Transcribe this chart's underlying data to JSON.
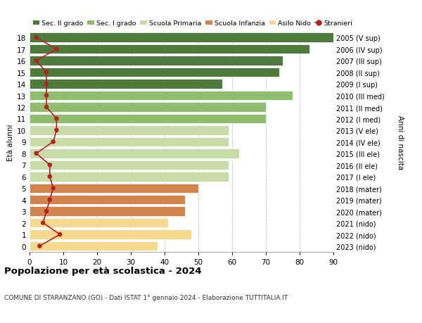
{
  "ages": [
    0,
    1,
    2,
    3,
    4,
    5,
    6,
    7,
    8,
    9,
    10,
    11,
    12,
    13,
    14,
    15,
    16,
    17,
    18
  ],
  "right_labels": [
    "2023 (nido)",
    "2022 (nido)",
    "2021 (nido)",
    "2020 (mater)",
    "2019 (mater)",
    "2018 (mater)",
    "2017 (I ele)",
    "2016 (II ele)",
    "2015 (III ele)",
    "2014 (IV ele)",
    "2013 (V ele)",
    "2012 (I med)",
    "2011 (II med)",
    "2010 (III med)",
    "2009 (I sup)",
    "2008 (II sup)",
    "2007 (III sup)",
    "2006 (IV sup)",
    "2005 (V sup)"
  ],
  "bar_values": [
    38,
    48,
    41,
    46,
    46,
    50,
    59,
    59,
    62,
    59,
    59,
    70,
    70,
    78,
    57,
    74,
    75,
    83,
    90
  ],
  "bar_colors": [
    "#f5d98e",
    "#f5d98e",
    "#f5d98e",
    "#d2844e",
    "#d2844e",
    "#d2844e",
    "#c8dba8",
    "#c8dba8",
    "#c8dba8",
    "#c8dba8",
    "#c8dba8",
    "#8fbc6e",
    "#8fbc6e",
    "#8fbc6e",
    "#4e7a3e",
    "#4e7a3e",
    "#4e7a3e",
    "#4e7a3e",
    "#4e7a3e"
  ],
  "stranieri_values": [
    3,
    9,
    4,
    5,
    6,
    7,
    6,
    6,
    2,
    7,
    8,
    8,
    5,
    5,
    5,
    5,
    2,
    8,
    2
  ],
  "legend_labels": [
    "Sec. II grado",
    "Sec. I grado",
    "Scuola Primaria",
    "Scuola Infanzia",
    "Asilo Nido",
    "Stranieri"
  ],
  "legend_colors": [
    "#4e7a3e",
    "#8fbc6e",
    "#c8dba8",
    "#d2844e",
    "#f5d98e",
    "#b22222"
  ],
  "title": "Popolazione per età scolastica - 2024",
  "subtitle": "COMUNE DI STARANZANO (GO) - Dati ISTAT 1° gennaio 2024 - Elaborazione TUTTITALIA.IT",
  "ylabel_left": "Età alunni",
  "ylabel_right": "Anni di nascita",
  "xlim": [
    0,
    90
  ],
  "xticks": [
    0,
    10,
    20,
    30,
    40,
    50,
    60,
    70,
    80,
    90
  ],
  "stranieri_color": "#b22222",
  "grid_color": "#cccccc",
  "bg_color": "#ffffff"
}
